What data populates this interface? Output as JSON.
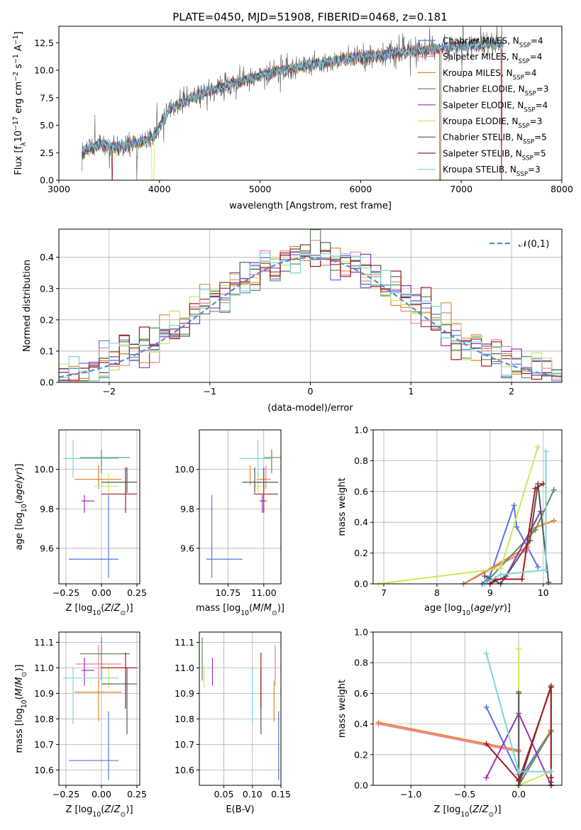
{
  "colors": {
    "Chabrier MILES": "#5577e0",
    "Salpeter MILES": "#f07f9b",
    "Kroupa MILES": "#e28a2f",
    "Chabrier ELODIE": "#5f8f5a",
    "Salpeter ELODIE": "#9a33b6",
    "Kroupa ELODIE": "#c6ea5a",
    "Chabrier STELIB": "#555555",
    "Salpeter STELIB": "#a81a1a",
    "Kroupa STELIB": "#7fd6d6",
    "normal": "#5a88d0"
  },
  "models": [
    {
      "name": "Chabrier MILES",
      "nssp": "4",
      "age": 9.545,
      "age_err": [
        9.45,
        9.87
      ],
      "Z": 0.05,
      "Z_err": [
        -0.23,
        0.12
      ],
      "mass": 10.637,
      "mass_err": [
        10.56,
        10.83
      ],
      "mass_xerr": [
        10.6,
        10.85
      ],
      "ebv": 0.146,
      "ebv_err": [
        10.56,
        10.83
      ],
      "w_age": [
        [
          8.85,
          0.0
        ],
        [
          9.0,
          0.05
        ],
        [
          9.45,
          0.51
        ],
        [
          9.5,
          0.37
        ],
        [
          9.9,
          0.11
        ]
      ],
      "w_Z": [
        [
          -0.3,
          0.51
        ],
        [
          0.0,
          0.07
        ],
        [
          0.0,
          0.03
        ],
        [
          0.3,
          0.36
        ]
      ]
    },
    {
      "name": "Salpeter MILES",
      "nssp": "4",
      "age": 9.95,
      "age_err": [
        9.9,
        10.02
      ],
      "Z": -0.02,
      "Z_err": [
        -0.18,
        0.14
      ],
      "mass": 11.015,
      "mass_err": [
        10.93,
        11.09
      ],
      "mass_xerr": [
        10.99,
        11.05
      ],
      "ebv": 0.14,
      "ebv_err": [
        10.93,
        11.09
      ],
      "w_age": [
        [
          8.5,
          0.0
        ],
        [
          9.7,
          0.22
        ],
        [
          9.8,
          0.36
        ],
        [
          10.2,
          0.41
        ]
      ],
      "w_Z": [
        [
          -1.3,
          0.4
        ],
        [
          0.0,
          0.22
        ],
        [
          0.0,
          0.0
        ],
        [
          0.3,
          0.36
        ]
      ]
    },
    {
      "name": "Kroupa MILES",
      "nssp": "4",
      "age": 9.95,
      "age_err": [
        9.92,
        10.02
      ],
      "Z": -0.02,
      "Z_err": [
        -0.19,
        0.14
      ],
      "mass": 10.905,
      "mass_err": [
        10.79,
        10.95
      ],
      "mass_xerr": [
        10.95,
        11.02
      ],
      "ebv": 0.138,
      "ebv_err": [
        10.79,
        10.95
      ],
      "w_age": [
        [
          8.5,
          0.0
        ],
        [
          9.7,
          0.24
        ],
        [
          9.8,
          0.36
        ],
        [
          10.2,
          0.41
        ]
      ],
      "w_Z": [
        [
          -1.3,
          0.41
        ],
        [
          0.0,
          0.23
        ],
        [
          0.0,
          0.0
        ],
        [
          0.3,
          0.36
        ]
      ]
    },
    {
      "name": "Chabrier ELODIE",
      "nssp": "3",
      "age": 10.06,
      "age_err": [
        9.98,
        10.1
      ],
      "Z": 0.0,
      "Z_err": [
        -0.15,
        0.2
      ],
      "mass": 11.055,
      "mass_err": [
        10.95,
        11.12
      ],
      "mass_xerr": [
        11.0,
        11.12
      ],
      "ebv": 0.012,
      "ebv_err": [
        10.95,
        11.12
      ],
      "w_age": [
        [
          8.9,
          0.0
        ],
        [
          9.85,
          0.35
        ],
        [
          10.2,
          0.61
        ]
      ],
      "w_Z": [
        [
          0.0,
          0.61
        ],
        [
          0.0,
          0.0
        ],
        [
          0.3,
          0.35
        ]
      ]
    },
    {
      "name": "Salpeter ELODIE",
      "nssp": "4",
      "age": 9.84,
      "age_err": [
        9.78,
        9.87
      ],
      "Z": -0.12,
      "Z_err": [
        -0.14,
        -0.05
      ],
      "mass": 10.99,
      "mass_err": [
        10.93,
        11.04
      ],
      "mass_xerr": [
        10.97,
        11.02
      ],
      "ebv": 0.03,
      "ebv_err": [
        10.93,
        11.04
      ],
      "w_age": [
        [
          9.0,
          0.0
        ],
        [
          9.3,
          0.05
        ],
        [
          9.95,
          0.47
        ]
      ],
      "w_Z": [
        [
          -0.3,
          0.05
        ],
        [
          0.0,
          0.47
        ],
        [
          0.3,
          0.0
        ]
      ]
    },
    {
      "name": "Kroupa ELODIE",
      "nssp": "3",
      "age": 9.915,
      "age_err": [
        9.88,
        9.98
      ],
      "Z": 0.05,
      "Z_err": [
        -0.05,
        0.12
      ],
      "mass": 10.96,
      "mass_err": [
        10.92,
        11.01
      ],
      "mass_xerr": [
        10.93,
        11.02
      ],
      "ebv": 0.015,
      "ebv_err": [
        10.92,
        11.01
      ],
      "w_age": [
        [
          6.9,
          0.0
        ],
        [
          9.2,
          0.1
        ],
        [
          9.9,
          0.89
        ]
      ],
      "w_Z": [
        [
          0.0,
          0.89
        ],
        [
          0.0,
          0.0
        ],
        [
          0.3,
          0.09
        ]
      ]
    },
    {
      "name": "Chabrier STELIB",
      "nssp": "5",
      "age": 9.935,
      "age_err": [
        9.88,
        10.01
      ],
      "Z": 0.18,
      "Z_err": [
        0.0,
        0.25
      ],
      "mass": 10.937,
      "mass_err": [
        10.74,
        11.0
      ],
      "mass_xerr": [
        10.85,
        11.1
      ],
      "ebv": 0.115,
      "ebv_err": [
        10.74,
        11.0
      ],
      "w_age": [
        [
          8.9,
          0.05
        ],
        [
          9.2,
          0.0
        ],
        [
          9.75,
          0.28
        ],
        [
          9.9,
          0.65
        ],
        [
          10.1,
          0.01
        ]
      ],
      "w_Z": [
        [
          0.0,
          0.6
        ],
        [
          0.0,
          0.0
        ],
        [
          0.3,
          0.65
        ],
        [
          0.3,
          0.02
        ],
        [
          0.3,
          0.0
        ]
      ]
    },
    {
      "name": "Salpeter STELIB",
      "nssp": "5",
      "age": 9.875,
      "age_err": [
        9.78,
        10.01
      ],
      "Z": 0.17,
      "Z_err": [
        0.0,
        0.25
      ],
      "mass": 11.0,
      "mass_err": [
        10.84,
        11.06
      ],
      "mass_xerr": [
        10.93,
        11.1
      ],
      "ebv": 0.115,
      "ebv_err": [
        10.84,
        11.06
      ],
      "w_age": [
        [
          9.0,
          0.0
        ],
        [
          9.1,
          0.03
        ],
        [
          9.6,
          0.03
        ],
        [
          9.85,
          0.62
        ],
        [
          10.0,
          0.65
        ]
      ],
      "w_Z": [
        [
          -0.3,
          0.27
        ],
        [
          0.0,
          0.03
        ],
        [
          0.3,
          0.64
        ],
        [
          0.3,
          0.05
        ],
        [
          0.3,
          0.0
        ]
      ]
    },
    {
      "name": "Kroupa STELIB",
      "nssp": "3",
      "age": 10.055,
      "age_err": [
        9.96,
        10.15
      ],
      "Z": -0.2,
      "Z_err": [
        -0.27,
        0.12
      ],
      "mass": 10.96,
      "mass_err": [
        10.78,
        11.0
      ],
      "mass_xerr": [
        10.83,
        11.05
      ],
      "ebv": 0.1,
      "ebv_err": [
        10.78,
        11.0
      ],
      "w_age": [
        [
          8.9,
          0.0
        ],
        [
          9.2,
          0.06
        ],
        [
          10.05,
          0.09
        ],
        [
          10.05,
          0.86
        ]
      ],
      "w_Z": [
        [
          -0.3,
          0.86
        ],
        [
          0.0,
          0.09
        ],
        [
          0.3,
          0.09
        ]
      ]
    }
  ],
  "chart_data": [
    {
      "type": "line",
      "title": "PLATE=0450, MJD=51908, FIBERID=0468, z=0.181",
      "xlabel": "wavelength [Angstrom, rest frame]",
      "ylabel": "Flux [f",
      "xlim": [
        3000,
        8000
      ],
      "ylim": [
        0,
        14
      ],
      "xticks": [
        "3000",
        "4000",
        "5000",
        "6000",
        "7000",
        "8000"
      ],
      "yticks": [
        "0.0",
        "2.5",
        "5.0",
        "7.5",
        "10.0",
        "12.5"
      ],
      "continuum": [
        [
          3230,
          2.5
        ],
        [
          3400,
          3.3
        ],
        [
          3600,
          3.0
        ],
        [
          3800,
          3.4
        ],
        [
          3950,
          4.0
        ],
        [
          4100,
          6.5
        ],
        [
          4400,
          7.8
        ],
        [
          4800,
          9.0
        ],
        [
          5200,
          10.0
        ],
        [
          5600,
          10.6
        ],
        [
          6000,
          11.2
        ],
        [
          6400,
          11.6
        ],
        [
          6800,
          12.0
        ],
        [
          7100,
          12.3
        ],
        [
          7420,
          12.4
        ]
      ],
      "legend": "top-right"
    },
    {
      "type": "bar",
      "xlabel": "(data-model)/error",
      "ylabel": "Normed distribution",
      "xlim": [
        -2.5,
        2.5
      ],
      "ylim": [
        0,
        0.49
      ],
      "xticks": [
        "−2",
        "−1",
        "0",
        "1",
        "2"
      ],
      "yticks": [
        "0.0",
        "0.1",
        "0.2",
        "0.3",
        "0.4"
      ],
      "legend_label": "𝒩(0,1)",
      "bin_width": 0.1,
      "legend": "top-right"
    },
    {
      "type": "scatter",
      "xlabel": "Z [log",
      "ylabel": "age  [log",
      "xlim": [
        -0.3,
        0.27
      ],
      "ylim": [
        9.42,
        10.2
      ],
      "xticks": [
        "−0.25",
        "0.00",
        "0.25"
      ],
      "yticks": [
        "9.6",
        "9.8",
        "10.0"
      ]
    },
    {
      "type": "scatter",
      "xlabel": "mass [log",
      "xlim": [
        10.55,
        11.12
      ],
      "ylim": [
        9.42,
        10.2
      ],
      "xticks": [
        "10.75",
        "11.00"
      ],
      "yticks": [
        "9.6",
        "9.8",
        "10.0"
      ]
    },
    {
      "type": "line",
      "xlabel": "age  [log",
      "ylabel": "mass weight",
      "xlim": [
        6.8,
        10.35
      ],
      "ylim": [
        0,
        1
      ],
      "xticks": [
        "7",
        "8",
        "9",
        "10"
      ],
      "yticks": [
        "0.0",
        "0.2",
        "0.4",
        "0.6",
        "0.8",
        "1.0"
      ]
    },
    {
      "type": "scatter",
      "xlabel": "Z [log",
      "ylabel": "mass [log",
      "xlim": [
        -0.3,
        0.27
      ],
      "ylim": [
        10.54,
        11.14
      ],
      "xticks": [
        "−0.25",
        "0.00",
        "0.25"
      ],
      "yticks": [
        "10.6",
        "10.7",
        "10.8",
        "10.9",
        "11.0",
        "11.1"
      ]
    },
    {
      "type": "scatter",
      "xlabel": "E(B-V)",
      "xlim": [
        0.007,
        0.15
      ],
      "ylim": [
        10.54,
        11.14
      ],
      "xticks": [
        "0.05",
        "0.10",
        "0.15"
      ],
      "yticks": [
        "10.6",
        "10.7",
        "10.8",
        "10.9",
        "11.0",
        "11.1"
      ]
    },
    {
      "type": "line",
      "xlabel": "Z [log",
      "ylabel": "mass weight",
      "xlim": [
        -1.35,
        0.4
      ],
      "ylim": [
        0,
        1
      ],
      "xticks": [
        "−1.0",
        "−0.5",
        "0.0"
      ],
      "yticks": [
        "0.0",
        "0.2",
        "0.4",
        "0.6",
        "0.8",
        "1.0"
      ]
    }
  ]
}
